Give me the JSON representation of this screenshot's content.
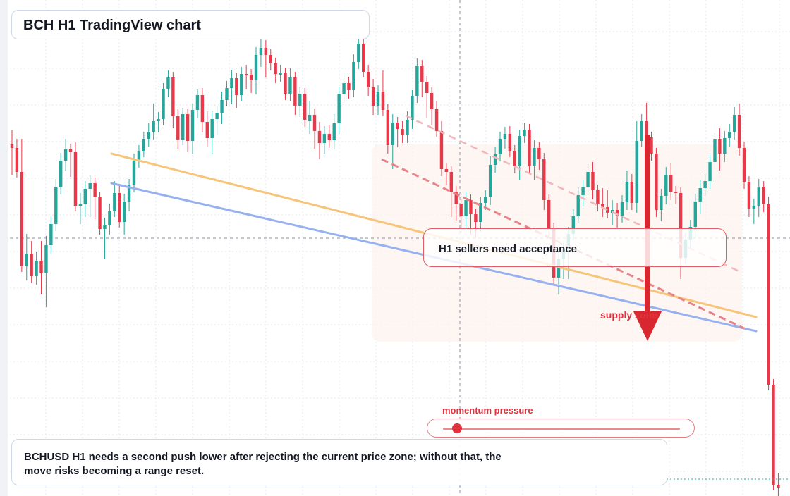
{
  "title": "BCH H1 TradingView chart",
  "callout": "H1 sellers need acceptance",
  "zone_label": "supply zone",
  "momentum": {
    "label": "momentum pressure",
    "level": 0.06
  },
  "note": "BCHUSD H1 needs a second push lower after rejecting the current price zone; without that, the move risks becoming a range reset.",
  "colors": {
    "up": "#26a69a",
    "down": "#e8394a",
    "orange": "#f7c57a",
    "blue": "#97b1f0",
    "accent": "#e0313d"
  },
  "chart_data": {
    "type": "candlestick",
    "candles": [
      [
        42,
        205,
        193,
        240,
        210
      ],
      [
        42,
        210,
        205,
        240,
        244
      ],
      [
        42,
        244,
        205,
        235,
        378
      ],
      [
        42,
        378,
        340,
        390,
        360
      ],
      [
        42,
        360,
        350,
        394,
        392
      ],
      [
        42,
        392,
        365,
        396,
        370
      ],
      [
        42,
        370,
        350,
        410,
        388
      ],
      [
        42,
        388,
        343,
        428,
        348
      ],
      [
        42,
        348,
        315,
        352,
        318
      ],
      [
        42,
        318,
        262,
        320,
        265
      ],
      [
        42,
        265,
        225,
        268,
        228
      ],
      [
        42,
        228,
        205,
        235,
        212
      ],
      [
        42,
        212,
        216,
        243,
        216
      ],
      [
        42,
        216,
        210,
        290,
        292
      ],
      [
        42,
        292,
        282,
        310,
        290
      ],
      [
        42,
        290,
        265,
        300,
        268
      ],
      [
        42,
        268,
        257,
        300,
        260
      ],
      [
        42,
        260,
        278,
        303,
        280
      ],
      [
        42,
        280,
        282,
        325,
        325
      ],
      [
        42,
        325,
        317,
        360,
        320
      ],
      [
        42,
        320,
        297,
        325,
        300
      ],
      [
        42,
        300,
        265,
        300,
        274
      ],
      [
        42,
        274,
        270,
        315,
        315
      ],
      [
        42,
        315,
        283,
        325,
        286
      ],
      [
        42,
        286,
        262,
        292,
        262
      ],
      [
        42,
        262,
        226,
        265,
        228
      ],
      [
        42,
        228,
        214,
        230,
        215
      ],
      [
        42,
        215,
        195,
        215,
        197
      ],
      [
        42,
        197,
        183,
        200,
        187
      ],
      [
        42,
        187,
        155,
        190,
        172
      ],
      [
        42,
        172,
        167,
        180,
        169
      ],
      [
        42,
        169,
        126,
        170,
        126
      ],
      [
        42,
        126,
        108,
        130,
        110
      ],
      [
        42,
        110,
        115,
        174,
        165
      ],
      [
        42,
        165,
        163,
        203,
        198
      ],
      [
        42,
        198,
        161,
        198,
        162
      ],
      [
        42,
        162,
        172,
        208,
        200
      ],
      [
        42,
        200,
        155,
        210,
        156
      ],
      [
        42,
        156,
        135,
        160,
        135
      ],
      [
        42,
        135,
        133,
        180,
        173
      ],
      [
        42,
        173,
        166,
        200,
        196
      ],
      [
        42,
        196,
        165,
        211,
        169
      ],
      [
        42,
        169,
        158,
        184,
        160
      ],
      [
        42,
        160,
        138,
        168,
        142
      ],
      [
        42,
        142,
        123,
        143,
        125
      ],
      [
        42,
        125,
        108,
        140,
        111
      ],
      [
        42,
        111,
        121,
        145,
        135
      ],
      [
        42,
        135,
        103,
        136,
        105
      ],
      [
        42,
        105,
        100,
        119,
        106
      ],
      [
        42,
        106,
        114,
        124,
        114
      ],
      [
        42,
        114,
        75,
        126,
        78
      ],
      [
        42,
        78,
        64,
        87,
        68
      ],
      [
        42,
        68,
        65,
        102,
        78
      ],
      [
        42,
        78,
        78,
        92,
        90
      ],
      [
        42,
        90,
        95,
        110,
        105
      ],
      [
        42,
        105,
        100,
        108,
        104
      ],
      [
        42,
        104,
        104,
        134,
        133
      ],
      [
        42,
        133,
        105,
        136,
        110
      ],
      [
        42,
        110,
        110,
        155,
        150
      ],
      [
        42,
        150,
        132,
        158,
        133
      ],
      [
        42,
        133,
        140,
        172,
        170
      ],
      [
        42,
        172,
        151,
        182,
        163
      ],
      [
        42,
        163,
        162,
        203,
        186
      ],
      [
        42,
        186,
        181,
        218,
        203
      ],
      [
        42,
        203,
        187,
        210,
        190
      ],
      [
        42,
        190,
        185,
        202,
        199
      ],
      [
        42,
        199,
        170,
        204,
        175
      ],
      [
        42,
        175,
        131,
        182,
        133
      ],
      [
        42,
        133,
        112,
        138,
        118
      ],
      [
        42,
        118,
        117,
        132,
        128
      ],
      [
        42,
        128,
        85,
        130,
        88
      ],
      [
        42,
        88,
        58,
        90,
        62
      ],
      [
        42,
        62,
        74,
        100,
        102
      ],
      [
        42,
        102,
        100,
        128,
        124
      ],
      [
        42,
        124,
        120,
        155,
        150
      ],
      [
        42,
        150,
        129,
        155,
        130
      ],
      [
        42,
        130,
        108,
        140,
        156
      ],
      [
        42,
        156,
        176,
        210,
        206
      ],
      [
        42,
        206,
        170,
        232,
        174
      ],
      [
        42,
        174,
        180,
        201,
        183
      ],
      [
        42,
        183,
        180,
        195,
        192
      ],
      [
        42,
        192,
        166,
        195,
        170
      ],
      [
        42,
        170,
        139,
        175,
        136
      ],
      [
        42,
        136,
        91,
        138,
        93
      ],
      [
        42,
        93,
        105,
        130,
        116
      ],
      [
        42,
        116,
        130,
        160,
        132
      ],
      [
        42,
        132,
        137,
        170,
        155
      ],
      [
        42,
        155,
        152,
        186,
        186
      ],
      [
        42,
        186,
        180,
        242,
        240
      ],
      [
        42,
        240,
        241,
        255,
        244
      ],
      [
        42,
        244,
        258,
        300,
        272
      ],
      [
        42,
        272,
        277,
        305,
        290
      ],
      [
        42,
        290,
        297,
        322,
        307
      ],
      [
        42,
        307,
        280,
        320,
        284
      ],
      [
        42,
        284,
        285,
        325,
        304
      ],
      [
        42,
        304,
        306,
        330,
        315
      ],
      [
        42,
        315,
        288,
        321,
        288
      ],
      [
        42,
        288,
        278,
        290,
        280
      ],
      [
        42,
        280,
        230,
        283,
        234
      ],
      [
        42,
        234,
        216,
        237,
        219
      ],
      [
        42,
        219,
        195,
        221,
        197
      ],
      [
        42,
        197,
        188,
        203,
        190
      ],
      [
        42,
        190,
        187,
        215,
        214
      ],
      [
        42,
        214,
        230,
        238,
        236
      ],
      [
        42,
        236,
        192,
        248,
        193
      ],
      [
        42,
        193,
        182,
        195,
        184
      ],
      [
        42,
        184,
        207,
        238,
        236
      ],
      [
        42,
        236,
        207,
        248,
        210
      ],
      [
        42,
        210,
        226,
        233,
        226
      ],
      [
        42,
        226,
        225,
        290,
        284
      ],
      [
        42,
        284,
        295,
        329,
        324
      ],
      [
        42,
        324,
        344,
        395,
        394
      ],
      [
        42,
        394,
        365,
        410,
        368
      ],
      [
        42,
        368,
        350,
        388,
        354
      ],
      [
        42,
        354,
        330,
        388,
        332
      ],
      [
        42,
        332,
        305,
        333,
        307
      ],
      [
        42,
        307,
        274,
        309,
        277
      ],
      [
        42,
        277,
        264,
        285,
        266
      ],
      [
        42,
        266,
        241,
        269,
        244
      ],
      [
        42,
        244,
        238,
        275,
        270
      ],
      [
        42,
        270,
        274,
        292,
        290
      ],
      [
        42,
        290,
        275,
        300,
        294
      ],
      [
        42,
        294,
        278,
        300,
        302
      ],
      [
        42,
        302,
        292,
        312,
        298
      ],
      [
        42,
        298,
        296,
        315,
        306
      ],
      [
        42,
        306,
        285,
        308,
        287
      ],
      [
        42,
        287,
        250,
        290,
        258
      ],
      [
        42,
        258,
        255,
        290,
        288
      ],
      [
        42,
        288,
        180,
        294,
        200
      ],
      [
        42,
        200,
        170,
        200,
        172
      ],
      [
        42,
        172,
        154,
        200,
        195
      ],
      [
        42,
        195,
        215,
        220,
        218
      ],
      [
        42,
        218,
        248,
        300,
        298
      ],
      [
        42,
        298,
        276,
        306,
        278
      ],
      [
        42,
        278,
        245,
        282,
        248
      ],
      [
        42,
        248,
        240,
        276,
        272
      ],
      [
        42,
        272,
        272,
        282,
        274
      ],
      [
        42,
        274,
        320,
        388,
        366
      ],
      [
        42,
        366,
        338,
        367,
        340
      ],
      [
        42,
        340,
        320,
        345,
        322
      ],
      [
        42,
        322,
        283,
        330,
        286
      ],
      [
        42,
        286,
        264,
        296,
        267
      ],
      [
        42,
        267,
        255,
        270,
        257
      ],
      [
        42,
        257,
        228,
        260,
        230
      ],
      [
        42,
        230,
        195,
        232,
        197
      ],
      [
        42,
        197,
        190,
        234,
        218
      ],
      [
        42,
        218,
        194,
        222,
        196
      ],
      [
        42,
        196,
        184,
        200,
        187
      ],
      [
        42,
        187,
        160,
        190,
        163
      ],
      [
        42,
        163,
        155,
        213,
        210
      ],
      [
        42,
        210,
        209,
        260,
        258
      ],
      [
        42,
        258,
        261,
        300,
        296
      ],
      [
        42,
        296,
        290,
        310,
        292
      ],
      [
        42,
        292,
        262,
        300,
        265
      ],
      [
        42,
        265,
        268,
        293,
        290
      ],
      [
        42,
        290,
        287,
        520,
        546
      ],
      [
        42,
        546,
        547,
        612,
        688
      ],
      [
        42,
        688,
        680,
        704,
        692
      ]
    ],
    "price_axis": "hidden"
  }
}
